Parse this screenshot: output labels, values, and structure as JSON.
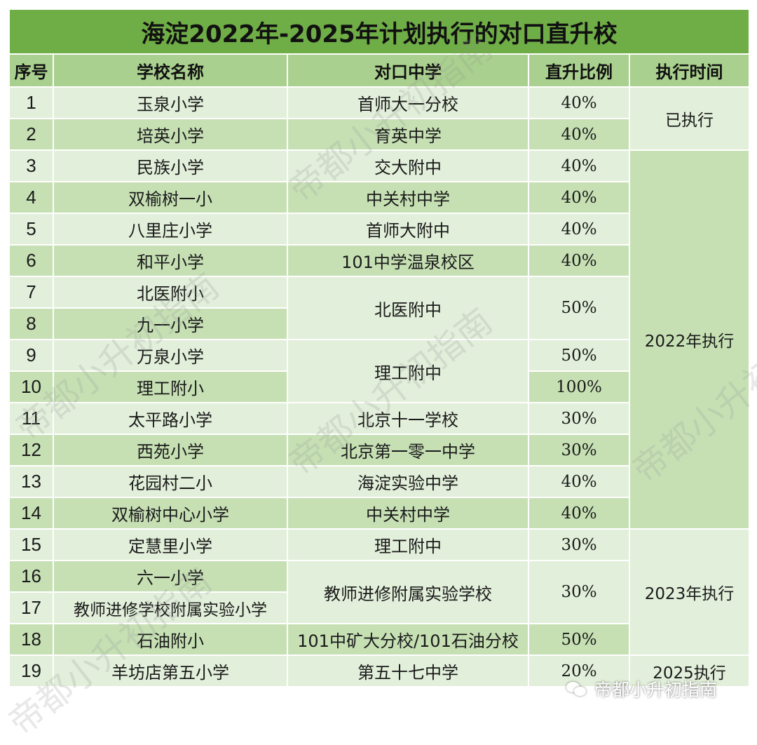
{
  "title": "海淀2022年-2025年计划执行的对口直升校",
  "headers": [
    "序号",
    "学校名称",
    "对口中学",
    "直升比例",
    "执行时间"
  ],
  "rows": [
    {
      "no": "1",
      "school": "玉泉小学",
      "middle": "首师大一分校",
      "ratio": "40%",
      "time": "已执行"
    },
    {
      "no": "2",
      "school": "培英小学",
      "middle": "育英中学",
      "ratio": "40%"
    },
    {
      "no": "3",
      "school": "民族小学",
      "middle": "交大附中",
      "ratio": "40%",
      "time": "2022年执行"
    },
    {
      "no": "4",
      "school": "双榆树一小",
      "middle": "中关村中学",
      "ratio": "40%"
    },
    {
      "no": "5",
      "school": "八里庄小学",
      "middle": "首师大附中",
      "ratio": "40%"
    },
    {
      "no": "6",
      "school": "和平小学",
      "middle": "101中学温泉校区",
      "ratio": "40%"
    },
    {
      "no": "7",
      "school": "北医附小",
      "middle": "北医附中",
      "ratio": "50%"
    },
    {
      "no": "8",
      "school": "九一小学"
    },
    {
      "no": "9",
      "school": "万泉小学",
      "middle": "理工附中",
      "ratio": "50%"
    },
    {
      "no": "10",
      "school": "理工附小",
      "ratio": "100%"
    },
    {
      "no": "11",
      "school": "太平路小学",
      "middle": "北京十一学校",
      "ratio": "30%"
    },
    {
      "no": "12",
      "school": "西苑小学",
      "middle": "北京第一零一中学",
      "ratio": "30%"
    },
    {
      "no": "13",
      "school": "花园村二小",
      "middle": "海淀实验中学",
      "ratio": "40%"
    },
    {
      "no": "14",
      "school": "双榆树中心小学",
      "middle": "中关村中学",
      "ratio": "40%"
    },
    {
      "no": "15",
      "school": "定慧里小学",
      "middle": "理工附中",
      "ratio": "30%",
      "time": "2023年执行"
    },
    {
      "no": "16",
      "school": "六一小学",
      "middle": "教师进修附属实验学校",
      "ratio": "30%"
    },
    {
      "no": "17",
      "school": "教师进修学校附属实验小学"
    },
    {
      "no": "18",
      "school": "石油附小",
      "middle": "101中矿大分校/101石油分校",
      "ratio": "50%"
    },
    {
      "no": "19",
      "school": "羊坊店第五小学",
      "middle": "第五十七中学",
      "ratio": "20%",
      "time": "2025执行"
    }
  ],
  "watermark": "帝都小升初指南",
  "badge": {
    "text": "帝都小升初指南",
    "icon": "wechat-icon"
  },
  "colors": {
    "title_bg": "#6fad46",
    "header_bg": "#a9d08e",
    "row_light": "#e2efda",
    "row_mid": "#c6e0b4"
  }
}
